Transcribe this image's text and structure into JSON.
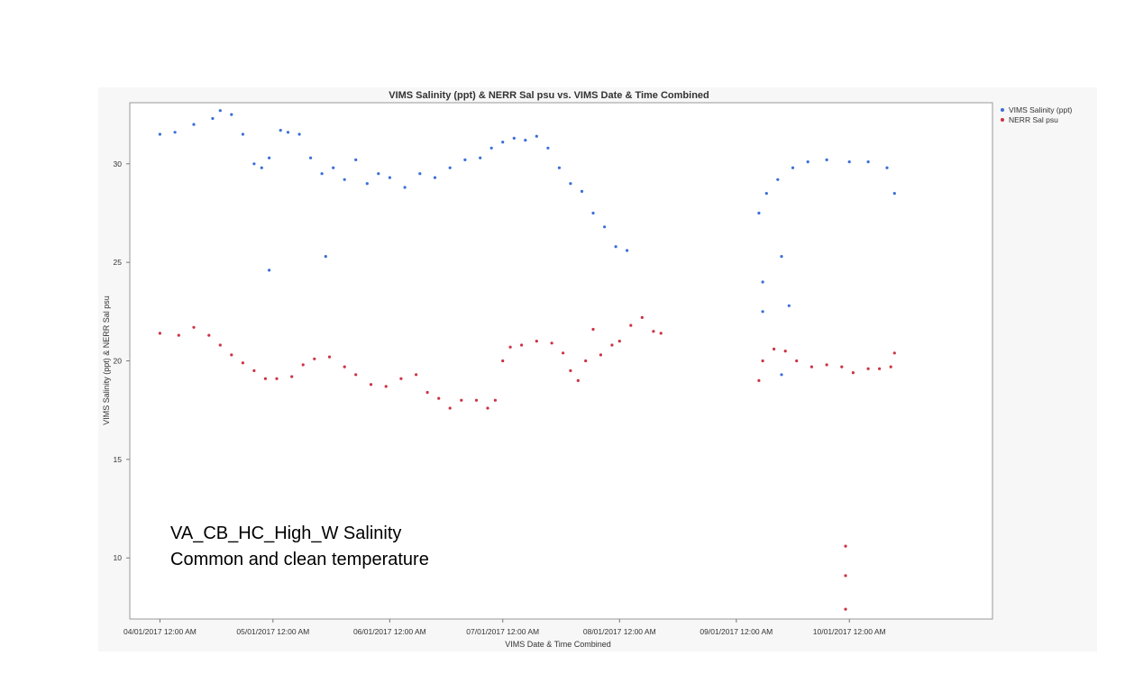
{
  "chart_data": {
    "type": "scatter",
    "title": "VIMS Salinity (ppt) & NERR Sal psu vs. VIMS Date & Time Combined",
    "xlabel": "VIMS Date & Time Combined",
    "ylabel": "VIMS Salinity (ppt) & NERR Sal psu",
    "x_ticks": [
      "04/01/2017 12:00 AM",
      "05/01/2017 12:00 AM",
      "06/01/2017 12:00 AM",
      "07/01/2017 12:00 AM",
      "08/01/2017 12:00 AM",
      "09/01/2017 12:00 AM",
      "10/01/2017 12:00 AM"
    ],
    "x_range": [
      "03/24/2017",
      "11/08/2017"
    ],
    "y_ticks": [
      10,
      15,
      20,
      25,
      30
    ],
    "ylim": [
      6.9,
      33.1
    ],
    "grid": false,
    "legend_position": "right",
    "series": [
      {
        "name": "VIMS Salinity (ppt)",
        "color": "#3a6fd8",
        "points": [
          [
            "04/01/2017",
            31.5
          ],
          [
            "04/05/2017",
            31.6
          ],
          [
            "04/10/2017",
            32.0
          ],
          [
            "04/15/2017",
            32.3
          ],
          [
            "04/17/2017",
            32.7
          ],
          [
            "04/20/2017",
            32.5
          ],
          [
            "04/23/2017",
            31.5
          ],
          [
            "04/26/2017",
            30.0
          ],
          [
            "04/28/2017",
            29.8
          ],
          [
            "04/30/2017",
            30.3
          ],
          [
            "05/03/2017",
            31.7
          ],
          [
            "05/05/2017",
            31.6
          ],
          [
            "05/08/2017",
            31.5
          ],
          [
            "05/11/2017",
            30.3
          ],
          [
            "05/14/2017",
            29.5
          ],
          [
            "05/17/2017",
            29.8
          ],
          [
            "05/20/2017",
            29.2
          ],
          [
            "05/23/2017",
            30.2
          ],
          [
            "05/26/2017",
            29.0
          ],
          [
            "05/29/2017",
            29.5
          ],
          [
            "06/01/2017",
            29.3
          ],
          [
            "06/05/2017",
            28.8
          ],
          [
            "06/09/2017",
            29.5
          ],
          [
            "06/13/2017",
            29.3
          ],
          [
            "06/17/2017",
            29.8
          ],
          [
            "06/21/2017",
            30.2
          ],
          [
            "06/25/2017",
            30.3
          ],
          [
            "06/28/2017",
            30.8
          ],
          [
            "07/01/2017",
            31.1
          ],
          [
            "07/04/2017",
            31.3
          ],
          [
            "07/07/2017",
            31.2
          ],
          [
            "07/10/2017",
            31.4
          ],
          [
            "07/13/2017",
            30.8
          ],
          [
            "07/16/2017",
            29.8
          ],
          [
            "07/19/2017",
            29.0
          ],
          [
            "07/22/2017",
            28.6
          ],
          [
            "07/25/2017",
            27.5
          ],
          [
            "07/28/2017",
            26.8
          ],
          [
            "07/31/2017",
            25.8
          ],
          [
            "08/03/2017",
            25.6
          ],
          [
            "09/07/2017",
            27.5
          ],
          [
            "09/09/2017",
            28.5
          ],
          [
            "09/12/2017",
            29.2
          ],
          [
            "09/16/2017",
            29.8
          ],
          [
            "09/20/2017",
            30.1
          ],
          [
            "09/25/2017",
            30.2
          ],
          [
            "10/01/2017",
            30.1
          ],
          [
            "10/06/2017",
            30.1
          ],
          [
            "10/11/2017",
            29.8
          ],
          [
            "10/13/2017",
            28.5
          ],
          [
            "09/08/2017",
            24.0
          ],
          [
            "09/08/2017",
            22.5
          ],
          [
            "09/13/2017",
            25.3
          ],
          [
            "09/15/2017",
            22.8
          ],
          [
            "04/30/2017",
            24.6
          ],
          [
            "05/15/2017",
            25.3
          ],
          [
            "09/13/2017",
            19.3
          ]
        ]
      },
      {
        "name": "NERR Sal psu",
        "color": "#cc3344",
        "points": [
          [
            "04/01/2017",
            21.4
          ],
          [
            "04/06/2017",
            21.3
          ],
          [
            "04/10/2017",
            21.7
          ],
          [
            "04/14/2017",
            21.3
          ],
          [
            "04/17/2017",
            20.8
          ],
          [
            "04/20/2017",
            20.3
          ],
          [
            "04/23/2017",
            19.9
          ],
          [
            "04/26/2017",
            19.5
          ],
          [
            "04/29/2017",
            19.1
          ],
          [
            "05/02/2017",
            19.1
          ],
          [
            "05/06/2017",
            19.2
          ],
          [
            "05/09/2017",
            19.8
          ],
          [
            "05/12/2017",
            20.1
          ],
          [
            "05/16/2017",
            20.2
          ],
          [
            "05/20/2017",
            19.7
          ],
          [
            "05/23/2017",
            19.3
          ],
          [
            "05/27/2017",
            18.8
          ],
          [
            "05/31/2017",
            18.7
          ],
          [
            "06/04/2017",
            19.1
          ],
          [
            "06/08/2017",
            19.3
          ],
          [
            "06/11/2017",
            18.4
          ],
          [
            "06/14/2017",
            18.1
          ],
          [
            "06/17/2017",
            17.6
          ],
          [
            "06/20/2017",
            18.0
          ],
          [
            "06/24/2017",
            18.0
          ],
          [
            "06/27/2017",
            17.6
          ],
          [
            "06/29/2017",
            18.0
          ],
          [
            "07/01/2017",
            20.0
          ],
          [
            "07/03/2017",
            20.7
          ],
          [
            "07/06/2017",
            20.8
          ],
          [
            "07/10/2017",
            21.0
          ],
          [
            "07/14/2017",
            20.9
          ],
          [
            "07/17/2017",
            20.4
          ],
          [
            "07/19/2017",
            19.5
          ],
          [
            "07/21/2017",
            19.0
          ],
          [
            "07/23/2017",
            20.0
          ],
          [
            "07/25/2017",
            21.6
          ],
          [
            "07/27/2017",
            20.3
          ],
          [
            "07/30/2017",
            20.8
          ],
          [
            "08/01/2017",
            21.0
          ],
          [
            "08/04/2017",
            21.8
          ],
          [
            "08/07/2017",
            22.2
          ],
          [
            "08/10/2017",
            21.5
          ],
          [
            "08/12/2017",
            21.4
          ],
          [
            "09/07/2017",
            19.0
          ],
          [
            "09/08/2017",
            20.0
          ],
          [
            "09/11/2017",
            20.6
          ],
          [
            "09/14/2017",
            20.5
          ],
          [
            "09/17/2017",
            20.0
          ],
          [
            "09/21/2017",
            19.7
          ],
          [
            "09/25/2017",
            19.8
          ],
          [
            "09/29/2017",
            19.7
          ],
          [
            "10/02/2017",
            19.4
          ],
          [
            "10/06/2017",
            19.6
          ],
          [
            "10/09/2017",
            19.6
          ],
          [
            "10/12/2017",
            19.7
          ],
          [
            "10/13/2017",
            20.4
          ],
          [
            "09/30/2017",
            10.6
          ],
          [
            "09/30/2017",
            9.1
          ],
          [
            "09/30/2017",
            7.4
          ]
        ]
      }
    ]
  },
  "overlay": {
    "line1": "VA_CB_HC_High_W Salinity",
    "line2": "Common and clean temperature"
  }
}
